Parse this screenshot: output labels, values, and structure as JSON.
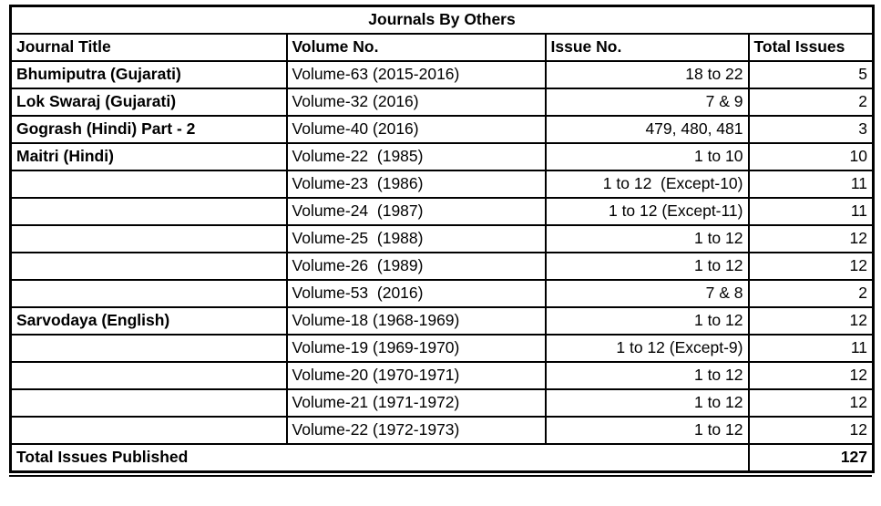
{
  "title": "Journals By Others",
  "columns": [
    "Journal Title",
    "Volume No.",
    "Issue No.",
    "Total Issues"
  ],
  "rows": [
    {
      "journal": "Bhumiputra (Gujarati)",
      "volume": "Volume-63 (2015-2016)",
      "issue": "18 to 22",
      "total": "5"
    },
    {
      "journal": "Lok Swaraj (Gujarati)",
      "volume": "Volume-32 (2016)",
      "issue": "7 & 9",
      "total": "2"
    },
    {
      "journal": "Gogrash (Hindi) Part - 2",
      "volume": "Volume-40 (2016)",
      "issue": "479, 480, 481",
      "total": "3"
    },
    {
      "journal": "Maitri (Hindi)",
      "volume": "Volume-22  (1985)",
      "issue": "1 to 10",
      "total": "10"
    },
    {
      "journal": "",
      "volume": "Volume-23  (1986)",
      "issue": "1 to 12  (Except-10)",
      "total": "11"
    },
    {
      "journal": "",
      "volume": "Volume-24  (1987)",
      "issue": "1 to 12 (Except-11)",
      "total": "11"
    },
    {
      "journal": "",
      "volume": "Volume-25  (1988)",
      "issue": "1 to 12",
      "total": "12"
    },
    {
      "journal": "",
      "volume": "Volume-26  (1989)",
      "issue": "1 to 12",
      "total": "12"
    },
    {
      "journal": "",
      "volume": "Volume-53  (2016)",
      "issue": "7 & 8",
      "total": "2"
    },
    {
      "journal": "Sarvodaya (English)",
      "volume": "Volume-18 (1968-1969)",
      "issue": "1 to 12",
      "total": "12"
    },
    {
      "journal": "",
      "volume": "Volume-19 (1969-1970)",
      "issue": "1 to 12 (Except-9)",
      "total": "11"
    },
    {
      "journal": "",
      "volume": "Volume-20 (1970-1971)",
      "issue": "1 to 12",
      "total": "12"
    },
    {
      "journal": "",
      "volume": "Volume-21 (1971-1972)",
      "issue": "1 to 12",
      "total": "12"
    },
    {
      "journal": "",
      "volume": "Volume-22 (1972-1973)",
      "issue": "1 to 12",
      "total": "12"
    }
  ],
  "footer": {
    "label": "Total Issues Published",
    "total": "127"
  },
  "colors": {
    "border": "#000000",
    "background": "#ffffff",
    "text": "#000000"
  }
}
